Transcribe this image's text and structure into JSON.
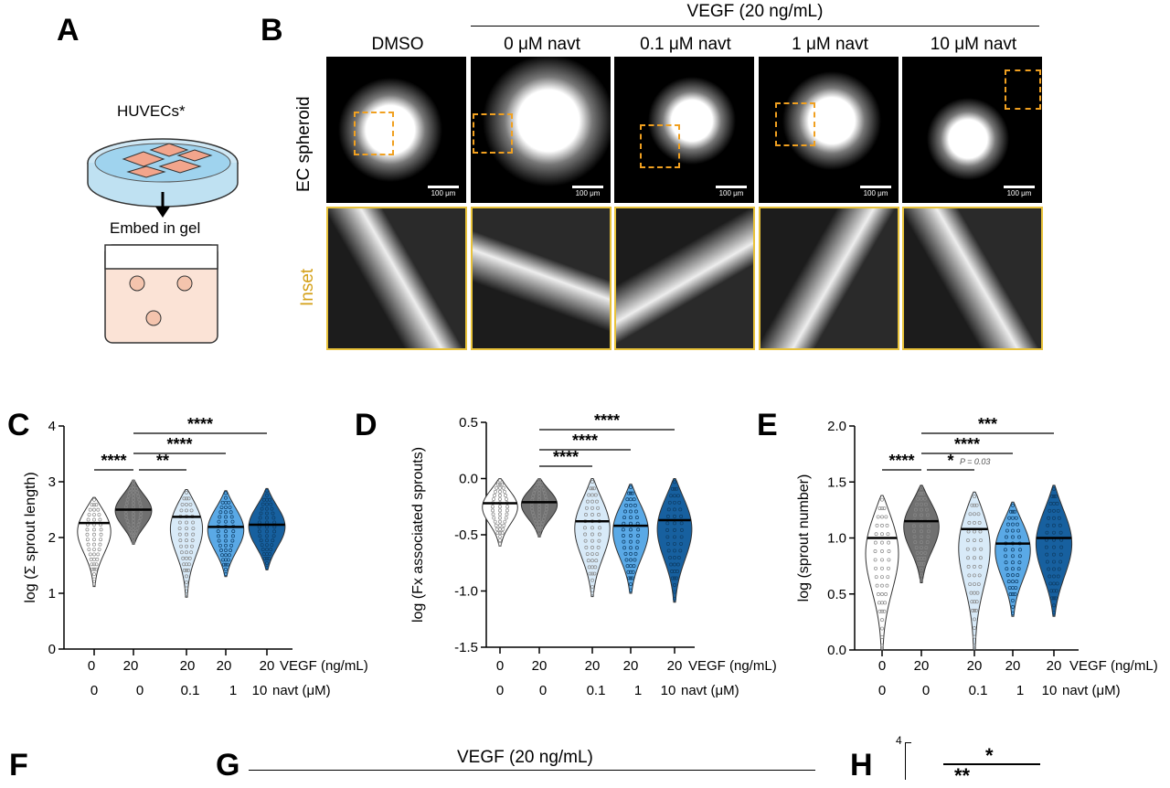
{
  "panels": {
    "A": {
      "label": "A",
      "cells_label": "HUVECs*",
      "step_label": "Embed in gel"
    },
    "B": {
      "label": "B",
      "group_header": "VEGF (20 ng/mL)",
      "columns": [
        "DMSO",
        "0 μM navt",
        "0.1 μM navt",
        "1 μM navt",
        "10 μM navt"
      ],
      "row_labels": {
        "top": "EC spheroid",
        "bottom": "Inset"
      },
      "scale_bar": "100 μm",
      "colors": {
        "inset_border": "#e8c23a",
        "roi_box": "#f0a020",
        "inset_label": "#d4a017"
      }
    },
    "F": {
      "label": "F"
    },
    "G": {
      "label": "G",
      "group_header": "VEGF (20 ng/mL)"
    },
    "H": {
      "label": "H",
      "y_tick_top": "4",
      "sig_top": "*",
      "sig_second": "**"
    }
  },
  "chart_data": [
    {
      "panel": "C",
      "type": "violin",
      "ylabel": "log  (Σ sprout length)",
      "ylim": [
        0,
        4
      ],
      "yticks": [
        "0",
        "1",
        "2",
        "3",
        "4"
      ],
      "x_rows": [
        {
          "name": "VEGF (ng/mL)",
          "values": [
            "0",
            "20",
            "20",
            "20",
            "20"
          ]
        },
        {
          "name": "navt (μM)",
          "values": [
            "0",
            "0",
            "0.1",
            "1",
            "10"
          ]
        }
      ],
      "groups": [
        {
          "min": 1.12,
          "max": 2.72,
          "median": 2.26,
          "color": "#ffffff"
        },
        {
          "min": 1.88,
          "max": 3.03,
          "median": 2.5,
          "color": "#707070"
        },
        {
          "min": 0.93,
          "max": 2.86,
          "median": 2.37,
          "color": "#d8eaf8"
        },
        {
          "min": 1.3,
          "max": 2.84,
          "median": 2.19,
          "color": "#5aa9e6"
        },
        {
          "min": 1.42,
          "max": 2.88,
          "median": 2.23,
          "color": "#17609f"
        }
      ],
      "significance": [
        {
          "from": 1,
          "to": 2,
          "label": "****"
        },
        {
          "from": 2,
          "to": 3,
          "label": "**"
        },
        {
          "from": 2,
          "to": 4,
          "label": "****"
        },
        {
          "from": 2,
          "to": 5,
          "label": "****"
        }
      ]
    },
    {
      "panel": "D",
      "type": "violin",
      "ylabel": "log  (Fx associated sprouts)",
      "ylim": [
        -1.5,
        0.5
      ],
      "yticks": [
        "-1.5",
        "-1.0",
        "-0.5",
        "0.0",
        "0.5"
      ],
      "x_rows": [
        {
          "name": "VEGF (ng/mL)",
          "values": [
            "0",
            "20",
            "20",
            "20",
            "20"
          ]
        },
        {
          "name": "navt (μM)",
          "values": [
            "0",
            "0",
            "0.1",
            "1",
            "10"
          ]
        }
      ],
      "groups": [
        {
          "min": -0.6,
          "max": 0.0,
          "median": -0.22,
          "color": "#ffffff"
        },
        {
          "min": -0.52,
          "max": 0.0,
          "median": -0.21,
          "color": "#707070"
        },
        {
          "min": -1.05,
          "max": 0.0,
          "median": -0.38,
          "color": "#d8eaf8"
        },
        {
          "min": -1.02,
          "max": -0.05,
          "median": -0.42,
          "color": "#5aa9e6"
        },
        {
          "min": -1.1,
          "max": 0.0,
          "median": -0.37,
          "color": "#17609f"
        }
      ],
      "significance": [
        {
          "from": 2,
          "to": 3,
          "label": "****"
        },
        {
          "from": 2,
          "to": 4,
          "label": "****"
        },
        {
          "from": 2,
          "to": 5,
          "label": "****"
        }
      ]
    },
    {
      "panel": "E",
      "type": "violin",
      "ylabel": "log  (sprout number)",
      "ylim": [
        0,
        2
      ],
      "yticks": [
        "0.0",
        "0.5",
        "1.0",
        "1.5",
        "2.0"
      ],
      "x_rows": [
        {
          "name": "VEGF (ng/mL)",
          "values": [
            "0",
            "20",
            "20",
            "20",
            "20"
          ]
        },
        {
          "name": "navt (μM)",
          "values": [
            "0",
            "0",
            "0.1",
            "1",
            "10"
          ]
        }
      ],
      "groups": [
        {
          "min": 0.0,
          "max": 1.38,
          "median": 1.0,
          "color": "#ffffff"
        },
        {
          "min": 0.6,
          "max": 1.47,
          "median": 1.15,
          "color": "#707070"
        },
        {
          "min": 0.0,
          "max": 1.41,
          "median": 1.08,
          "color": "#d8eaf8"
        },
        {
          "min": 0.3,
          "max": 1.32,
          "median": 0.95,
          "color": "#5aa9e6"
        },
        {
          "min": 0.3,
          "max": 1.47,
          "median": 1.0,
          "color": "#17609f"
        }
      ],
      "significance": [
        {
          "from": 1,
          "to": 2,
          "label": "****"
        },
        {
          "from": 2,
          "to": 3,
          "label": "*",
          "note": "P = 0.03"
        },
        {
          "from": 2,
          "to": 4,
          "label": "****"
        },
        {
          "from": 2,
          "to": 5,
          "label": "***"
        }
      ]
    }
  ]
}
